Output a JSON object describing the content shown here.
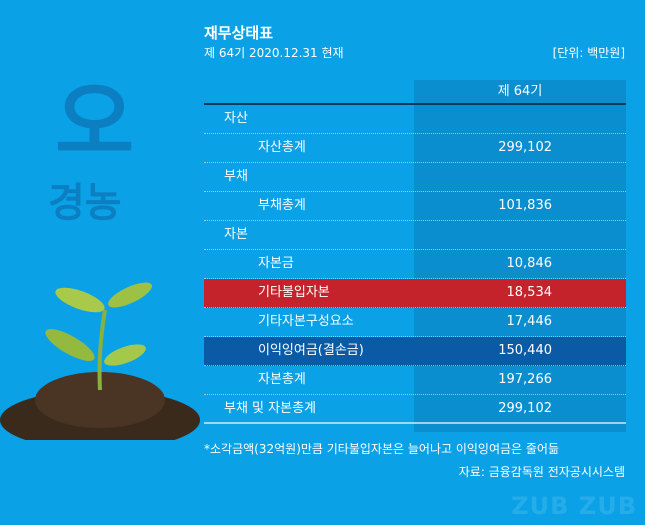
{
  "title": "재무상태표",
  "subtitle": "제 64기 2020.12.31 현재",
  "unit": "[단위: 백만원]",
  "logo": {
    "mark": "오",
    "name": "경농"
  },
  "column_header": "제 64기",
  "rows": [
    {
      "label": "자산",
      "value": ""
    },
    {
      "label": "자산총계",
      "value": "299,102"
    },
    {
      "label": "부채",
      "value": ""
    },
    {
      "label": "부채총계",
      "value": "101,836"
    },
    {
      "label": "자본",
      "value": ""
    },
    {
      "label": "자본금",
      "value": "10,846"
    },
    {
      "label": "기타불입자본",
      "value": "18,534"
    },
    {
      "label": "기타자본구성요소",
      "value": "17,446"
    },
    {
      "label": "이익잉여금(결손금)",
      "value": "150,440"
    },
    {
      "label": "자본총계",
      "value": "197,266"
    },
    {
      "label": "부채 및 자본총계",
      "value": "299,102"
    }
  ],
  "colors": {
    "background": "#0aa1e7",
    "highlight_red": "#c5232c",
    "highlight_navy": "#0b5aa5"
  },
  "note": "*소각금액(32억원)만큼 기타불입자본은 늘어나고 이익잉여금은 줄어듦",
  "source": "자료: 금융감독원 전자공시시스템",
  "watermark": "ZUB ZUB"
}
